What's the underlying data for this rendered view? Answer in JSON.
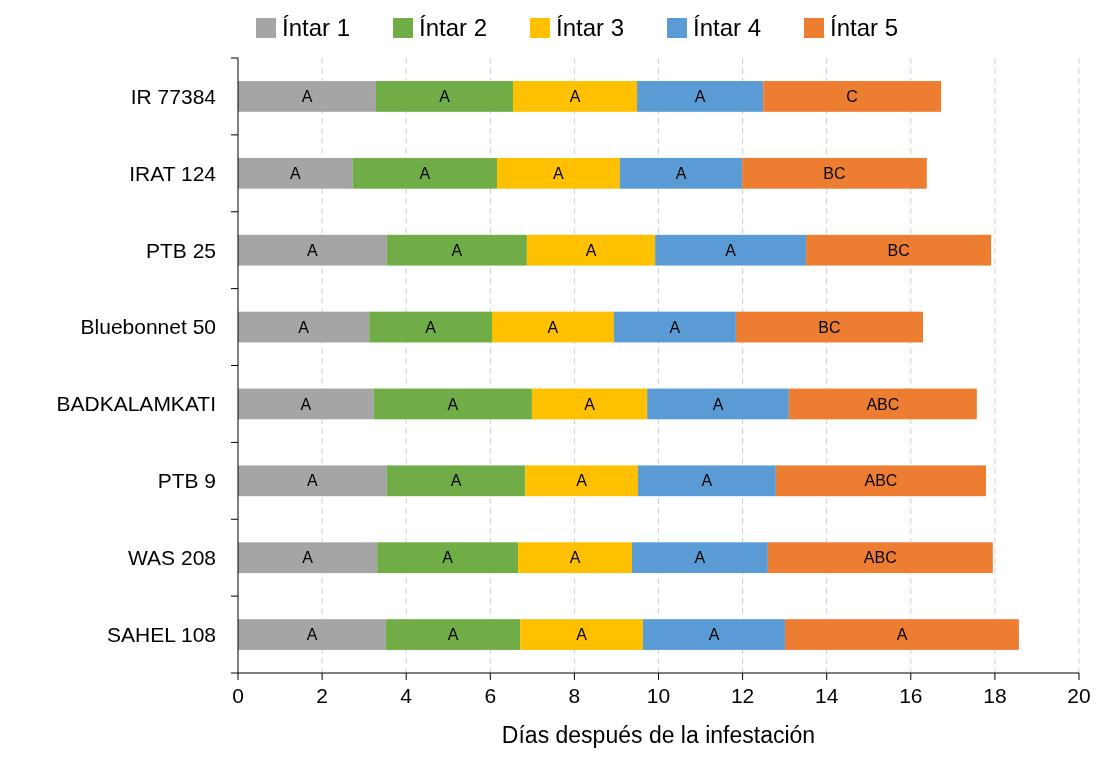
{
  "chart_data": {
    "type": "bar",
    "orientation": "horizontal",
    "stacked": true,
    "xlabel": "Días después de la infestación",
    "categories": [
      "IR 77384",
      "IRAT 124",
      "PTB 25",
      "Bluebonnet 50",
      "BADKALAMKATI",
      "PTB 9",
      "WAS 208",
      "SAHEL 108"
    ],
    "series": [
      {
        "name": "Íntar 1",
        "color": "#a5a5a5",
        "values": [
          3.28,
          2.73,
          3.54,
          3.12,
          3.23,
          3.54,
          3.31,
          3.52
        ],
        "value_labels": [
          "A",
          "A",
          "A",
          "A",
          "A",
          "A",
          "A",
          "A"
        ]
      },
      {
        "name": "Íntar 2",
        "color": "#70ad47",
        "values": [
          3.26,
          3.43,
          3.33,
          2.92,
          3.76,
          3.29,
          3.35,
          3.19
        ],
        "value_labels": [
          "A",
          "A",
          "A",
          "A",
          "A",
          "A",
          "A",
          "A"
        ]
      },
      {
        "name": "Íntar 3",
        "color": "#ffc000",
        "values": [
          2.95,
          2.92,
          3.05,
          2.9,
          2.74,
          2.68,
          2.71,
          2.92
        ],
        "value_labels": [
          "A",
          "A",
          "A",
          "A",
          "A",
          "A",
          "A",
          "A"
        ]
      },
      {
        "name": "Íntar 4",
        "color": "#5b9bd5",
        "values": [
          3.0,
          2.91,
          3.59,
          2.9,
          3.37,
          3.28,
          3.23,
          3.38
        ],
        "value_labels": [
          "A",
          "A",
          "A",
          "A",
          "A",
          "A",
          "A",
          "A"
        ]
      },
      {
        "name": "Íntar 5",
        "color": "#ed7d31",
        "values": [
          4.23,
          4.39,
          4.4,
          4.45,
          4.47,
          5.0,
          5.35,
          5.56
        ],
        "value_labels": [
          "C",
          "BC",
          "BC",
          "BC",
          "ABC",
          "ABC",
          "ABC",
          "A"
        ]
      }
    ],
    "xlim": [
      0,
      20
    ],
    "xticks": [
      0,
      2,
      4,
      6,
      8,
      10,
      12,
      14,
      16,
      18,
      20
    ],
    "grid": "x",
    "legend": "top"
  }
}
